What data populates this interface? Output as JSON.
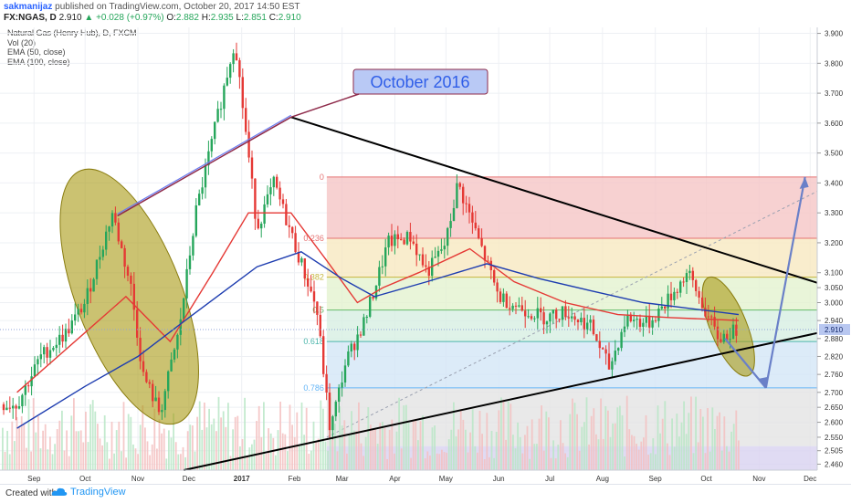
{
  "header": {
    "author": "sakmanijaz",
    "published": "published on TradingView.com, October 20, 2017 14:50 EST",
    "symbol": "FX:NGAS, D",
    "last": "2.910",
    "change": "+0.028 (+0.97%)",
    "o_label": "O:",
    "o": "2.882",
    "h_label": "H:",
    "h": "2.935",
    "l_label": "L:",
    "l": "2.851",
    "c_label": "C:",
    "c": "2.910"
  },
  "legend": {
    "title": "Natural Gas (Henry Hub), D, FXCM",
    "vol": "Vol (20)",
    "ema50": "EMA (50, close)",
    "ema100": "EMA (100, close)"
  },
  "annotation": {
    "callout": "October 2016"
  },
  "colors": {
    "up": "#26a65b",
    "down": "#e53935",
    "ema50": "#e53935",
    "ema100": "#1e3db0",
    "ellipse_fill": "#a89a12",
    "callout_bg": "#b9c9f5",
    "callout_text": "#2f5ee8",
    "arrow": "#6a80c8"
  },
  "footer": {
    "created_with": "Created with",
    "brand": "TradingView"
  },
  "chart_data": {
    "type": "candlestick",
    "title": "Natural Gas (Henry Hub), D, FXCM",
    "x_ticks": [
      "Sep",
      "Oct",
      "Nov",
      "Dec",
      "2017",
      "Feb",
      "Mar",
      "Apr",
      "May",
      "Jun",
      "Jul",
      "Aug",
      "Sep",
      "Oct",
      "Nov",
      "Dec"
    ],
    "y_ticks": [
      "3.900",
      "3.800",
      "3.700",
      "3.600",
      "3.500",
      "3.400",
      "3.300",
      "3.200",
      "3.100",
      "3.050",
      "3.000",
      "2.940",
      "2.880",
      "2.820",
      "2.760",
      "2.700",
      "2.650",
      "2.600",
      "2.550",
      "2.505",
      "2.460"
    ],
    "ylim": [
      2.44,
      3.92
    ],
    "last_price": "2.910",
    "fibonacci": [
      {
        "level": "0",
        "price": 3.42
      },
      {
        "level": "0.236",
        "price": 3.215
      },
      {
        "level": "0.382",
        "price": 3.085
      },
      {
        "level": "0.5",
        "price": 2.975
      },
      {
        "level": "0.618",
        "price": 2.87
      },
      {
        "level": "0.786",
        "price": 2.715
      }
    ],
    "series": [
      {
        "name": "EMA (50, close)",
        "color": "#e53935"
      },
      {
        "name": "EMA (100, close)",
        "color": "#1e3db0"
      },
      {
        "name": "Vol (20)",
        "color": "#2ecc71"
      }
    ],
    "price_path": [
      {
        "date": "2016-08-22",
        "price": 2.66
      },
      {
        "date": "2016-09-05",
        "price": 2.82
      },
      {
        "date": "2016-09-20",
        "price": 2.9
      },
      {
        "date": "2016-10-01",
        "price": 3.0
      },
      {
        "date": "2016-10-17",
        "price": 3.3
      },
      {
        "date": "2016-10-28",
        "price": 3.05
      },
      {
        "date": "2016-11-04",
        "price": 2.76
      },
      {
        "date": "2016-11-14",
        "price": 2.63
      },
      {
        "date": "2016-11-25",
        "price": 2.9
      },
      {
        "date": "2016-12-05",
        "price": 3.3
      },
      {
        "date": "2016-12-15",
        "price": 3.55
      },
      {
        "date": "2016-12-28",
        "price": 3.88
      },
      {
        "date": "2017-01-10",
        "price": 3.25
      },
      {
        "date": "2017-01-20",
        "price": 3.4
      },
      {
        "date": "2017-02-02",
        "price": 3.18
      },
      {
        "date": "2017-02-14",
        "price": 2.98
      },
      {
        "date": "2017-02-22",
        "price": 2.57
      },
      {
        "date": "2017-03-03",
        "price": 2.8
      },
      {
        "date": "2017-03-15",
        "price": 2.95
      },
      {
        "date": "2017-03-28",
        "price": 3.2
      },
      {
        "date": "2017-04-10",
        "price": 3.22
      },
      {
        "date": "2017-04-20",
        "price": 3.1
      },
      {
        "date": "2017-05-01",
        "price": 3.2
      },
      {
        "date": "2017-05-08",
        "price": 3.4
      },
      {
        "date": "2017-05-22",
        "price": 3.18
      },
      {
        "date": "2017-06-01",
        "price": 3.02
      },
      {
        "date": "2017-06-15",
        "price": 2.98
      },
      {
        "date": "2017-06-28",
        "price": 2.95
      },
      {
        "date": "2017-07-10",
        "price": 2.97
      },
      {
        "date": "2017-07-25",
        "price": 2.92
      },
      {
        "date": "2017-08-05",
        "price": 2.78
      },
      {
        "date": "2017-08-15",
        "price": 2.95
      },
      {
        "date": "2017-08-28",
        "price": 2.93
      },
      {
        "date": "2017-09-10",
        "price": 3.02
      },
      {
        "date": "2017-09-20",
        "price": 3.1
      },
      {
        "date": "2017-09-28",
        "price": 3.0
      },
      {
        "date": "2017-10-08",
        "price": 2.88
      },
      {
        "date": "2017-10-20",
        "price": 2.91
      }
    ],
    "ema50_path": [
      {
        "date": "2016-08-22",
        "price": 2.7
      },
      {
        "date": "2016-10-05",
        "price": 2.92
      },
      {
        "date": "2016-10-25",
        "price": 3.02
      },
      {
        "date": "2016-11-20",
        "price": 2.87
      },
      {
        "date": "2016-12-15",
        "price": 3.1
      },
      {
        "date": "2017-01-05",
        "price": 3.3
      },
      {
        "date": "2017-01-30",
        "price": 3.3
      },
      {
        "date": "2017-02-20",
        "price": 3.14
      },
      {
        "date": "2017-03-10",
        "price": 3.0
      },
      {
        "date": "2017-03-25",
        "price": 3.05
      },
      {
        "date": "2017-04-15",
        "price": 3.1
      },
      {
        "date": "2017-05-15",
        "price": 3.18
      },
      {
        "date": "2017-06-10",
        "price": 3.07
      },
      {
        "date": "2017-07-10",
        "price": 3.0
      },
      {
        "date": "2017-08-10",
        "price": 2.96
      },
      {
        "date": "2017-09-10",
        "price": 2.95
      },
      {
        "date": "2017-10-20",
        "price": 2.94
      }
    ],
    "ema100_path": [
      {
        "date": "2016-08-22",
        "price": 2.58
      },
      {
        "date": "2016-10-01",
        "price": 2.72
      },
      {
        "date": "2016-11-01",
        "price": 2.82
      },
      {
        "date": "2016-12-01",
        "price": 2.95
      },
      {
        "date": "2017-01-10",
        "price": 3.12
      },
      {
        "date": "2017-02-05",
        "price": 3.17
      },
      {
        "date": "2017-03-01",
        "price": 3.08
      },
      {
        "date": "2017-03-20",
        "price": 3.02
      },
      {
        "date": "2017-04-20",
        "price": 3.07
      },
      {
        "date": "2017-05-25",
        "price": 3.13
      },
      {
        "date": "2017-06-25",
        "price": 3.08
      },
      {
        "date": "2017-07-25",
        "price": 3.04
      },
      {
        "date": "2017-08-25",
        "price": 3.0
      },
      {
        "date": "2017-10-20",
        "price": 2.96
      }
    ],
    "trendlines": [
      {
        "name": "upper",
        "from": {
          "date": "2017-01-30",
          "price": 3.62
        },
        "to": {
          "date": "2017-12-31",
          "price": 3.02
        }
      },
      {
        "name": "lower",
        "from": {
          "date": "2016-11-28",
          "price": 2.44
        },
        "to": {
          "date": "2017-12-31",
          "price": 2.93
        }
      },
      {
        "name": "october-2016",
        "from": {
          "date": "2016-10-20",
          "price": 3.29
        },
        "to": {
          "date": "2017-01-30",
          "price": 3.62
        }
      }
    ],
    "projection": [
      {
        "date": "2017-10-12",
        "price": 2.88
      },
      {
        "date": "2017-11-05",
        "price": 2.715
      },
      {
        "date": "2017-11-28",
        "price": 3.42
      }
    ]
  }
}
